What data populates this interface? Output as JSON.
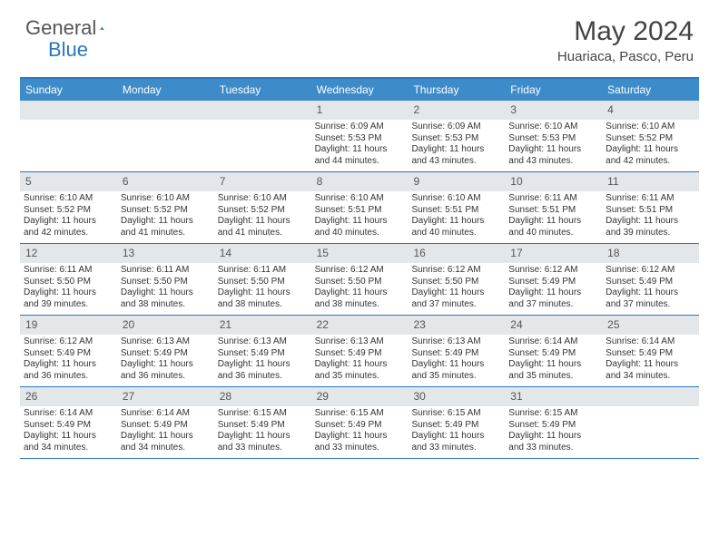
{
  "logo": {
    "general": "General",
    "blue": "Blue"
  },
  "title": "May 2024",
  "location": "Huariaca, Pasco, Peru",
  "colors": {
    "header_bg": "#3d8bc9",
    "border": "#2a77ba",
    "daynum_bg": "#e4e7ea",
    "text": "#333333"
  },
  "day_headers": [
    "Sunday",
    "Monday",
    "Tuesday",
    "Wednesday",
    "Thursday",
    "Friday",
    "Saturday"
  ],
  "weeks": [
    [
      {
        "n": "",
        "sr": "",
        "ss": "",
        "dl": ""
      },
      {
        "n": "",
        "sr": "",
        "ss": "",
        "dl": ""
      },
      {
        "n": "",
        "sr": "",
        "ss": "",
        "dl": ""
      },
      {
        "n": "1",
        "sr": "6:09 AM",
        "ss": "5:53 PM",
        "dl": "11 hours and 44 minutes."
      },
      {
        "n": "2",
        "sr": "6:09 AM",
        "ss": "5:53 PM",
        "dl": "11 hours and 43 minutes."
      },
      {
        "n": "3",
        "sr": "6:10 AM",
        "ss": "5:53 PM",
        "dl": "11 hours and 43 minutes."
      },
      {
        "n": "4",
        "sr": "6:10 AM",
        "ss": "5:52 PM",
        "dl": "11 hours and 42 minutes."
      }
    ],
    [
      {
        "n": "5",
        "sr": "6:10 AM",
        "ss": "5:52 PM",
        "dl": "11 hours and 42 minutes."
      },
      {
        "n": "6",
        "sr": "6:10 AM",
        "ss": "5:52 PM",
        "dl": "11 hours and 41 minutes."
      },
      {
        "n": "7",
        "sr": "6:10 AM",
        "ss": "5:52 PM",
        "dl": "11 hours and 41 minutes."
      },
      {
        "n": "8",
        "sr": "6:10 AM",
        "ss": "5:51 PM",
        "dl": "11 hours and 40 minutes."
      },
      {
        "n": "9",
        "sr": "6:10 AM",
        "ss": "5:51 PM",
        "dl": "11 hours and 40 minutes."
      },
      {
        "n": "10",
        "sr": "6:11 AM",
        "ss": "5:51 PM",
        "dl": "11 hours and 40 minutes."
      },
      {
        "n": "11",
        "sr": "6:11 AM",
        "ss": "5:51 PM",
        "dl": "11 hours and 39 minutes."
      }
    ],
    [
      {
        "n": "12",
        "sr": "6:11 AM",
        "ss": "5:50 PM",
        "dl": "11 hours and 39 minutes."
      },
      {
        "n": "13",
        "sr": "6:11 AM",
        "ss": "5:50 PM",
        "dl": "11 hours and 38 minutes."
      },
      {
        "n": "14",
        "sr": "6:11 AM",
        "ss": "5:50 PM",
        "dl": "11 hours and 38 minutes."
      },
      {
        "n": "15",
        "sr": "6:12 AM",
        "ss": "5:50 PM",
        "dl": "11 hours and 38 minutes."
      },
      {
        "n": "16",
        "sr": "6:12 AM",
        "ss": "5:50 PM",
        "dl": "11 hours and 37 minutes."
      },
      {
        "n": "17",
        "sr": "6:12 AM",
        "ss": "5:49 PM",
        "dl": "11 hours and 37 minutes."
      },
      {
        "n": "18",
        "sr": "6:12 AM",
        "ss": "5:49 PM",
        "dl": "11 hours and 37 minutes."
      }
    ],
    [
      {
        "n": "19",
        "sr": "6:12 AM",
        "ss": "5:49 PM",
        "dl": "11 hours and 36 minutes."
      },
      {
        "n": "20",
        "sr": "6:13 AM",
        "ss": "5:49 PM",
        "dl": "11 hours and 36 minutes."
      },
      {
        "n": "21",
        "sr": "6:13 AM",
        "ss": "5:49 PM",
        "dl": "11 hours and 36 minutes."
      },
      {
        "n": "22",
        "sr": "6:13 AM",
        "ss": "5:49 PM",
        "dl": "11 hours and 35 minutes."
      },
      {
        "n": "23",
        "sr": "6:13 AM",
        "ss": "5:49 PM",
        "dl": "11 hours and 35 minutes."
      },
      {
        "n": "24",
        "sr": "6:14 AM",
        "ss": "5:49 PM",
        "dl": "11 hours and 35 minutes."
      },
      {
        "n": "25",
        "sr": "6:14 AM",
        "ss": "5:49 PM",
        "dl": "11 hours and 34 minutes."
      }
    ],
    [
      {
        "n": "26",
        "sr": "6:14 AM",
        "ss": "5:49 PM",
        "dl": "11 hours and 34 minutes."
      },
      {
        "n": "27",
        "sr": "6:14 AM",
        "ss": "5:49 PM",
        "dl": "11 hours and 34 minutes."
      },
      {
        "n": "28",
        "sr": "6:15 AM",
        "ss": "5:49 PM",
        "dl": "11 hours and 33 minutes."
      },
      {
        "n": "29",
        "sr": "6:15 AM",
        "ss": "5:49 PM",
        "dl": "11 hours and 33 minutes."
      },
      {
        "n": "30",
        "sr": "6:15 AM",
        "ss": "5:49 PM",
        "dl": "11 hours and 33 minutes."
      },
      {
        "n": "31",
        "sr": "6:15 AM",
        "ss": "5:49 PM",
        "dl": "11 hours and 33 minutes."
      },
      {
        "n": "",
        "sr": "",
        "ss": "",
        "dl": ""
      }
    ]
  ]
}
